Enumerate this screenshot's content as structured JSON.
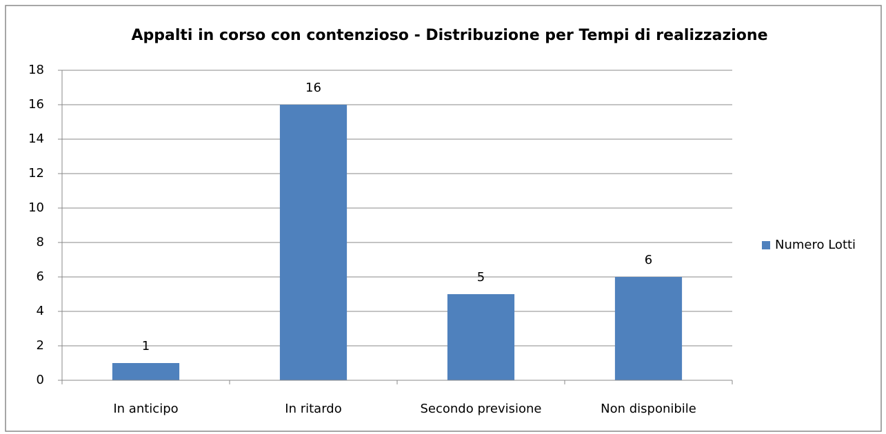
{
  "chart_data": {
    "type": "bar",
    "title": "Appalti in corso con contenzioso - Distribuzione per Tempi di realizzazione",
    "categories": [
      "In anticipo",
      "In ritardo",
      "Secondo previsione",
      "Non disponibile"
    ],
    "series": [
      {
        "name": "Numero Lotti",
        "color": "#4f81bd",
        "values": [
          1,
          16,
          5,
          6
        ]
      }
    ],
    "ylim": [
      0,
      18
    ],
    "yticks": [
      0,
      2,
      4,
      6,
      8,
      10,
      12,
      14,
      16,
      18
    ],
    "grid": true,
    "legend": "right"
  }
}
